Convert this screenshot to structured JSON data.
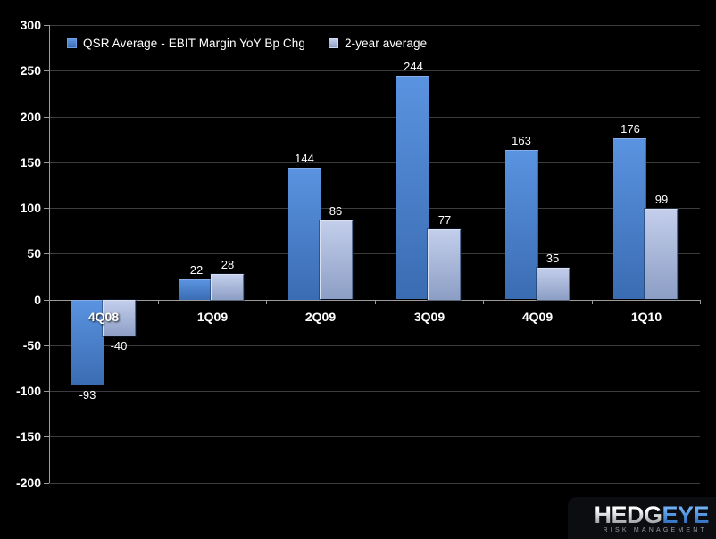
{
  "background": "#000000",
  "colors": {
    "series1_top": "#5a93e0",
    "series1_bottom": "#3a6cb2",
    "series2_top": "#c3ceeb",
    "series2_bottom": "#8c9ec5",
    "gridline": "#3c3c3c",
    "axis": "#9c9c9c",
    "text": "#ffffff"
  },
  "legend": {
    "items": [
      {
        "label": "QSR Average - EBIT Margin YoY Bp Chg"
      },
      {
        "label": "2-year average"
      }
    ]
  },
  "chart_data": {
    "type": "bar",
    "title": "",
    "categories": [
      "4Q08",
      "1Q09",
      "2Q09",
      "3Q09",
      "4Q09",
      "1Q10"
    ],
    "series": [
      {
        "name": "QSR Average - EBIT Margin YoY Bp Chg",
        "values": [
          -93,
          22,
          144,
          244,
          163,
          176
        ]
      },
      {
        "name": "2-year average",
        "values": [
          -40,
          28,
          86,
          77,
          35,
          99
        ]
      }
    ],
    "ylim": [
      -200,
      300
    ],
    "ytick_step": 50,
    "yticks": [
      300,
      250,
      200,
      150,
      100,
      50,
      0,
      -50,
      -100,
      -150,
      -200
    ],
    "grid": true,
    "legend_position": "top-left",
    "value_labels": true
  },
  "logo": {
    "brand_part1": "HEDG",
    "brand_part2": "EYE",
    "tagline": "RISK MANAGEMENT"
  }
}
